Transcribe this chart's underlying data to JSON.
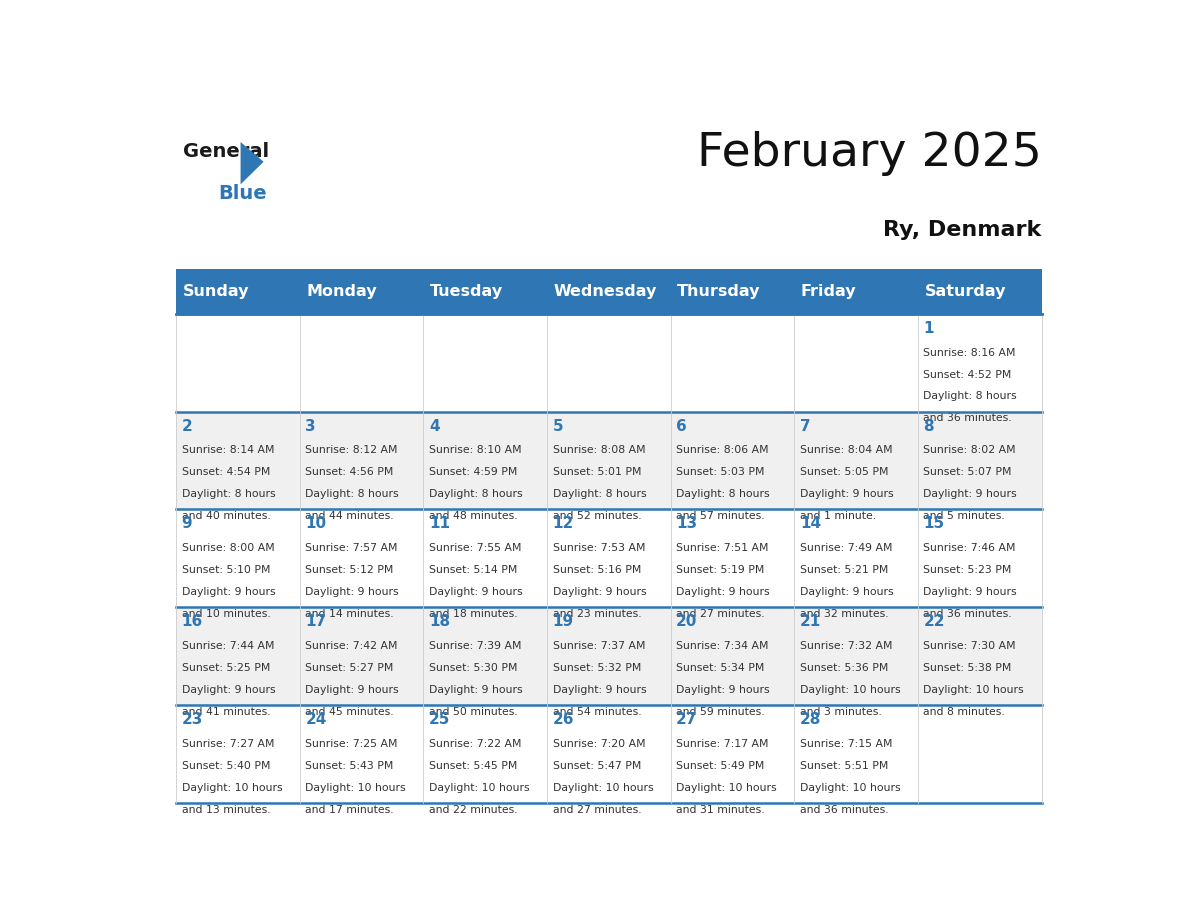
{
  "title": "February 2025",
  "subtitle": "Ry, Denmark",
  "days_of_week": [
    "Sunday",
    "Monday",
    "Tuesday",
    "Wednesday",
    "Thursday",
    "Friday",
    "Saturday"
  ],
  "header_bg_color": "#2E76B4",
  "header_text_color": "#FFFFFF",
  "day_number_color": "#2E76B4",
  "text_color": "#333333",
  "border_color": "#2E76B4",
  "light_border_color": "#CCCCCC",
  "calendar_data": [
    [
      {
        "day": null,
        "sunrise": null,
        "sunset": null,
        "daylight": null
      },
      {
        "day": null,
        "sunrise": null,
        "sunset": null,
        "daylight": null
      },
      {
        "day": null,
        "sunrise": null,
        "sunset": null,
        "daylight": null
      },
      {
        "day": null,
        "sunrise": null,
        "sunset": null,
        "daylight": null
      },
      {
        "day": null,
        "sunrise": null,
        "sunset": null,
        "daylight": null
      },
      {
        "day": null,
        "sunrise": null,
        "sunset": null,
        "daylight": null
      },
      {
        "day": 1,
        "sunrise": "8:16 AM",
        "sunset": "4:52 PM",
        "daylight": "8 hours\nand 36 minutes."
      }
    ],
    [
      {
        "day": 2,
        "sunrise": "8:14 AM",
        "sunset": "4:54 PM",
        "daylight": "8 hours\nand 40 minutes."
      },
      {
        "day": 3,
        "sunrise": "8:12 AM",
        "sunset": "4:56 PM",
        "daylight": "8 hours\nand 44 minutes."
      },
      {
        "day": 4,
        "sunrise": "8:10 AM",
        "sunset": "4:59 PM",
        "daylight": "8 hours\nand 48 minutes."
      },
      {
        "day": 5,
        "sunrise": "8:08 AM",
        "sunset": "5:01 PM",
        "daylight": "8 hours\nand 52 minutes."
      },
      {
        "day": 6,
        "sunrise": "8:06 AM",
        "sunset": "5:03 PM",
        "daylight": "8 hours\nand 57 minutes."
      },
      {
        "day": 7,
        "sunrise": "8:04 AM",
        "sunset": "5:05 PM",
        "daylight": "9 hours\nand 1 minute."
      },
      {
        "day": 8,
        "sunrise": "8:02 AM",
        "sunset": "5:07 PM",
        "daylight": "9 hours\nand 5 minutes."
      }
    ],
    [
      {
        "day": 9,
        "sunrise": "8:00 AM",
        "sunset": "5:10 PM",
        "daylight": "9 hours\nand 10 minutes."
      },
      {
        "day": 10,
        "sunrise": "7:57 AM",
        "sunset": "5:12 PM",
        "daylight": "9 hours\nand 14 minutes."
      },
      {
        "day": 11,
        "sunrise": "7:55 AM",
        "sunset": "5:14 PM",
        "daylight": "9 hours\nand 18 minutes."
      },
      {
        "day": 12,
        "sunrise": "7:53 AM",
        "sunset": "5:16 PM",
        "daylight": "9 hours\nand 23 minutes."
      },
      {
        "day": 13,
        "sunrise": "7:51 AM",
        "sunset": "5:19 PM",
        "daylight": "9 hours\nand 27 minutes."
      },
      {
        "day": 14,
        "sunrise": "7:49 AM",
        "sunset": "5:21 PM",
        "daylight": "9 hours\nand 32 minutes."
      },
      {
        "day": 15,
        "sunrise": "7:46 AM",
        "sunset": "5:23 PM",
        "daylight": "9 hours\nand 36 minutes."
      }
    ],
    [
      {
        "day": 16,
        "sunrise": "7:44 AM",
        "sunset": "5:25 PM",
        "daylight": "9 hours\nand 41 minutes."
      },
      {
        "day": 17,
        "sunrise": "7:42 AM",
        "sunset": "5:27 PM",
        "daylight": "9 hours\nand 45 minutes."
      },
      {
        "day": 18,
        "sunrise": "7:39 AM",
        "sunset": "5:30 PM",
        "daylight": "9 hours\nand 50 minutes."
      },
      {
        "day": 19,
        "sunrise": "7:37 AM",
        "sunset": "5:32 PM",
        "daylight": "9 hours\nand 54 minutes."
      },
      {
        "day": 20,
        "sunrise": "7:34 AM",
        "sunset": "5:34 PM",
        "daylight": "9 hours\nand 59 minutes."
      },
      {
        "day": 21,
        "sunrise": "7:32 AM",
        "sunset": "5:36 PM",
        "daylight": "10 hours\nand 3 minutes."
      },
      {
        "day": 22,
        "sunrise": "7:30 AM",
        "sunset": "5:38 PM",
        "daylight": "10 hours\nand 8 minutes."
      }
    ],
    [
      {
        "day": 23,
        "sunrise": "7:27 AM",
        "sunset": "5:40 PM",
        "daylight": "10 hours\nand 13 minutes."
      },
      {
        "day": 24,
        "sunrise": "7:25 AM",
        "sunset": "5:43 PM",
        "daylight": "10 hours\nand 17 minutes."
      },
      {
        "day": 25,
        "sunrise": "7:22 AM",
        "sunset": "5:45 PM",
        "daylight": "10 hours\nand 22 minutes."
      },
      {
        "day": 26,
        "sunrise": "7:20 AM",
        "sunset": "5:47 PM",
        "daylight": "10 hours\nand 27 minutes."
      },
      {
        "day": 27,
        "sunrise": "7:17 AM",
        "sunset": "5:49 PM",
        "daylight": "10 hours\nand 31 minutes."
      },
      {
        "day": 28,
        "sunrise": "7:15 AM",
        "sunset": "5:51 PM",
        "daylight": "10 hours\nand 36 minutes."
      },
      {
        "day": null,
        "sunrise": null,
        "sunset": null,
        "daylight": null
      }
    ]
  ]
}
